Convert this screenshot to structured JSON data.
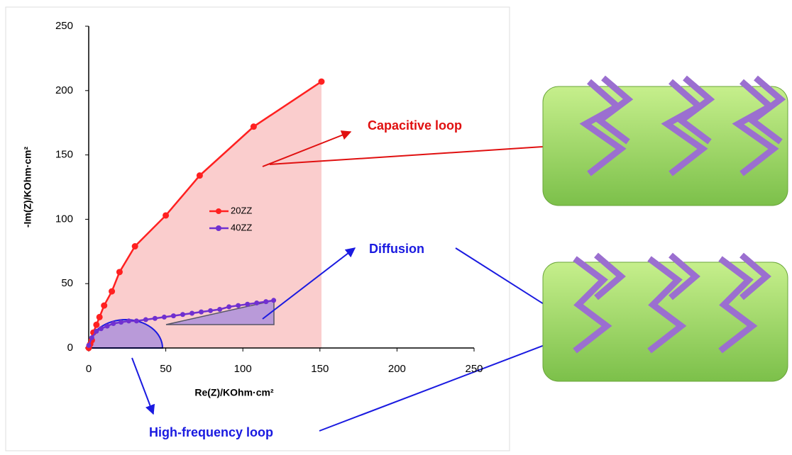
{
  "chart_data": {
    "type": "scatter-line",
    "x_label": "Re(Z)/KOhm·cm²",
    "y_label": "-Im(Z)/KOhm·cm²",
    "xlim": [
      0,
      250
    ],
    "xticks": [
      0,
      50,
      100,
      150,
      200,
      250
    ],
    "ylim": [
      0,
      250
    ],
    "yticks": [
      0,
      50,
      100,
      150,
      200,
      250
    ],
    "grid": false,
    "series": [
      {
        "name": "20ZZ",
        "color": "#ff2020",
        "x": [
          0,
          1,
          2,
          3,
          5,
          7,
          10,
          15,
          20,
          30,
          50,
          72,
          107,
          151
        ],
        "values": [
          0,
          3,
          6,
          12,
          18,
          24,
          33,
          44,
          59,
          79,
          103,
          134,
          172,
          207
        ]
      },
      {
        "name": "40ZZ",
        "color": "#7030d0",
        "x": [
          0,
          2,
          5,
          8,
          12,
          16,
          21,
          26,
          31,
          37,
          43,
          49,
          55,
          61,
          67,
          73,
          79,
          85,
          91,
          97,
          103,
          109,
          115,
          120
        ],
        "values": [
          2,
          8,
          13,
          15,
          17,
          19,
          20,
          21,
          21,
          22,
          23,
          24,
          25,
          26,
          27,
          28,
          29,
          30,
          32,
          33,
          34,
          35,
          36,
          37
        ]
      }
    ],
    "annotations": [
      "Capacitive loop",
      "Diffusion",
      "High-frequency loop"
    ]
  }
}
